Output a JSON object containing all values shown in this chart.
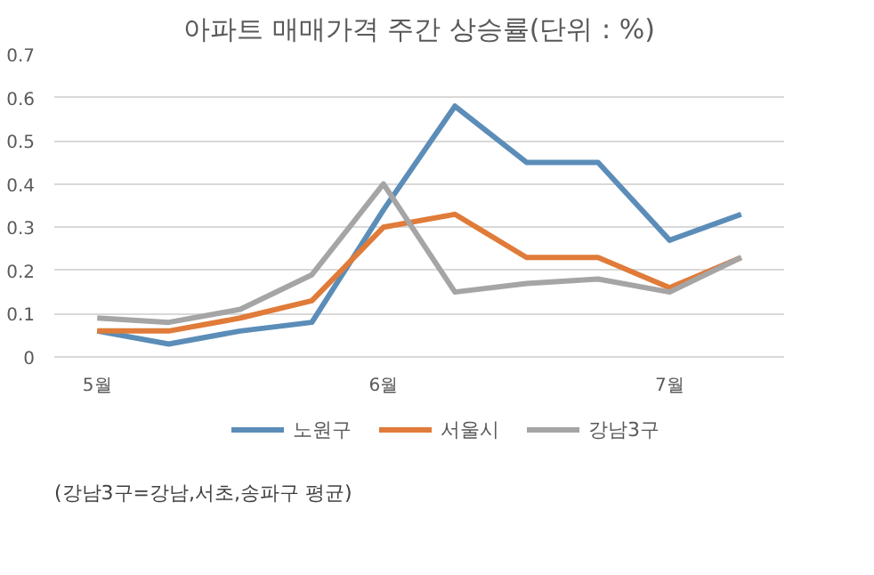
{
  "chart_data": {
    "type": "line",
    "title": "아파트 매매가격 주간 상승률(단위 : %)",
    "categories": [
      "5월",
      null,
      null,
      null,
      "6월",
      null,
      null,
      null,
      "7월",
      null
    ],
    "series": [
      {
        "name": "노원구",
        "color": "#5b8db8",
        "values": [
          0.06,
          0.03,
          0.06,
          0.08,
          0.34,
          0.58,
          0.45,
          0.45,
          0.27,
          0.33
        ]
      },
      {
        "name": "서울시",
        "color": "#e07b39",
        "values": [
          0.06,
          0.06,
          0.09,
          0.13,
          0.3,
          0.33,
          0.23,
          0.23,
          0.16,
          0.23
        ]
      },
      {
        "name": "강남3구",
        "color": "#a5a5a5",
        "values": [
          0.09,
          0.08,
          0.11,
          0.19,
          0.4,
          0.15,
          0.17,
          0.18,
          0.15,
          0.23
        ]
      }
    ],
    "ylim": [
      0,
      0.7
    ],
    "yticks": [
      0,
      0.1,
      0.2,
      0.3,
      0.4,
      0.5,
      0.6,
      0.7
    ],
    "grid": "y",
    "legend": "bottom",
    "marker": "none",
    "line_style": "solid",
    "annotations": [
      "(강남3구=강남,서초,송파구 평균)"
    ]
  }
}
